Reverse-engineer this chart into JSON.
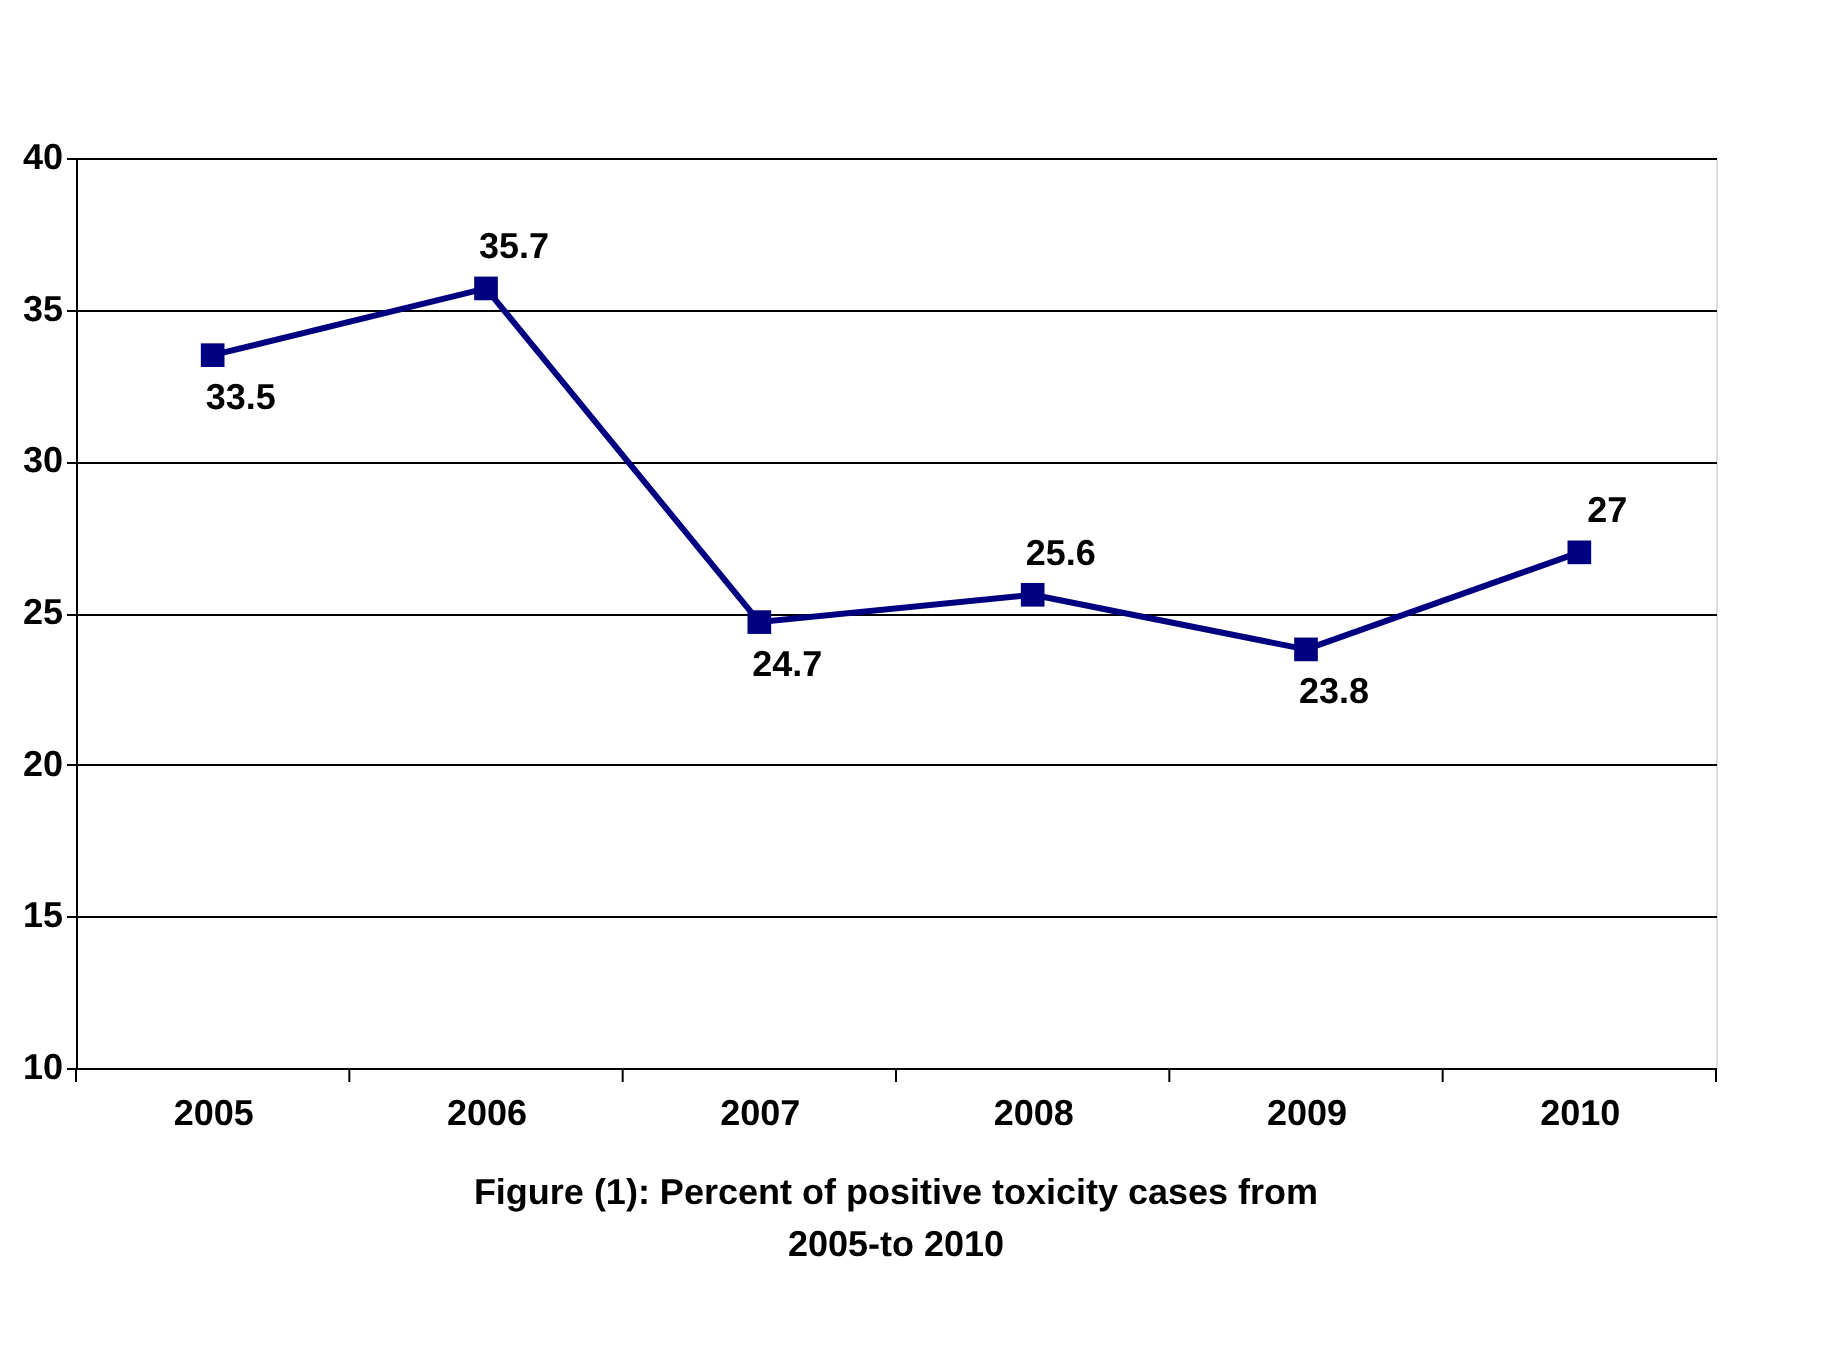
{
  "chart_data": {
    "type": "line",
    "title": "Figure (1): Percent of positive toxicity cases from 2005-to 2010",
    "categories": [
      "2005",
      "2006",
      "2007",
      "2008",
      "2009",
      "2010"
    ],
    "series": [
      {
        "color": "#000080",
        "values": [
          33.5,
          35.7,
          24.7,
          25.6,
          23.8,
          27
        ]
      }
    ],
    "ylim": [
      10,
      40
    ],
    "yticks": [
      10,
      15,
      20,
      25,
      30,
      35,
      40
    ],
    "grid": "y",
    "data_labels": true,
    "marker": "square",
    "line_style": "solid"
  }
}
